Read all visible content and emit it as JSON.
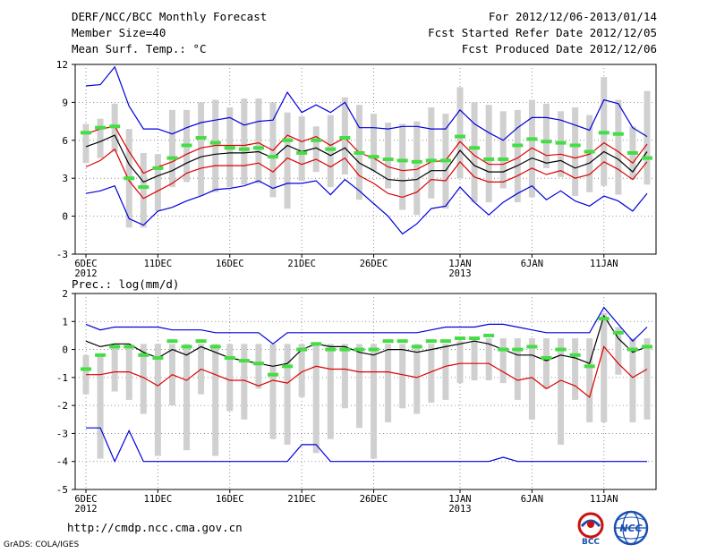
{
  "header": {
    "title": "DERF/NCC/BCC Monthly Forecast",
    "member_size": "Member Size=40",
    "variable": "Mean Surf. Temp.: °C",
    "period": "For 2012/12/06-2013/01/14",
    "fcst_started": "Fcst Started Refer Date 2012/12/05",
    "fcst_produced": "Fcst Produced Date 2012/12/06"
  },
  "footer": {
    "url": "http://cmdp.ncc.cma.gov.cn",
    "credit": "GrADS: COLA/IGES",
    "logos": [
      "BCC",
      "NCC"
    ]
  },
  "colors": {
    "max_min": "#0000dd",
    "std": "#dd0000",
    "mean": "#000000",
    "median": "#44dd44",
    "range_bar": "#d0d0d0"
  },
  "chart_data": [
    {
      "type": "line",
      "title": "Mean Surf. Temp.: °C",
      "x_dates": [
        "6DEC",
        "7DEC",
        "8DEC",
        "9DEC",
        "10DEC",
        "11DEC",
        "12DEC",
        "13DEC",
        "14DEC",
        "15DEC",
        "16DEC",
        "17DEC",
        "18DEC",
        "19DEC",
        "20DEC",
        "21DEC",
        "22DEC",
        "23DEC",
        "24DEC",
        "25DEC",
        "26DEC",
        "27DEC",
        "28DEC",
        "29DEC",
        "30DEC",
        "31DEC",
        "1JAN",
        "2JAN",
        "3JAN",
        "4JAN",
        "5JAN",
        "6JAN",
        "7JAN",
        "8JAN",
        "9JAN",
        "10JAN",
        "11JAN",
        "12JAN",
        "13JAN",
        "14JAN"
      ],
      "x_ticks": [
        {
          "day": 0,
          "label": "6DEC",
          "sub": "2012"
        },
        {
          "day": 5,
          "label": "11DEC",
          "sub": ""
        },
        {
          "day": 10,
          "label": "16DEC",
          "sub": ""
        },
        {
          "day": 15,
          "label": "21DEC",
          "sub": ""
        },
        {
          "day": 20,
          "label": "26DEC",
          "sub": ""
        },
        {
          "day": 26,
          "label": "1JAN",
          "sub": "2013"
        },
        {
          "day": 31,
          "label": "6JAN",
          "sub": ""
        },
        {
          "day": 36,
          "label": "11JAN",
          "sub": ""
        }
      ],
      "ylim": [
        -3,
        12
      ],
      "yticks": [
        -3,
        0,
        3,
        6,
        9,
        12
      ],
      "series": [
        {
          "name": "max",
          "values": [
            10.3,
            10.4,
            11.8,
            8.7,
            6.9,
            6.9,
            6.5,
            7.0,
            7.4,
            7.6,
            7.8,
            7.2,
            7.5,
            7.6,
            9.8,
            8.2,
            8.8,
            8.2,
            9.0,
            7.0,
            7.0,
            6.9,
            7.1,
            7.1,
            6.9,
            6.9,
            8.4,
            7.3,
            6.6,
            6.0,
            7.0,
            7.8,
            7.8,
            7.6,
            7.2,
            6.8,
            9.2,
            8.9,
            7.0,
            6.3
          ]
        },
        {
          "name": "min",
          "values": [
            1.8,
            2.0,
            2.4,
            -0.2,
            -0.7,
            0.4,
            0.7,
            1.2,
            1.6,
            2.1,
            2.2,
            2.4,
            2.8,
            2.2,
            2.6,
            2.6,
            2.8,
            1.7,
            2.9,
            2.0,
            1.0,
            0.0,
            -1.4,
            -0.6,
            0.6,
            0.8,
            2.3,
            1.1,
            0.1,
            1.1,
            1.8,
            2.4,
            1.3,
            2.0,
            1.2,
            0.8,
            1.6,
            1.2,
            0.4,
            1.8
          ]
        },
        {
          "name": "mean+std",
          "values": [
            6.5,
            6.9,
            7.1,
            5.1,
            3.4,
            3.9,
            4.3,
            4.9,
            5.4,
            5.6,
            5.6,
            5.6,
            5.8,
            5.2,
            6.4,
            5.9,
            6.3,
            5.6,
            6.2,
            5.0,
            4.6,
            3.9,
            3.6,
            3.7,
            4.3,
            4.4,
            5.9,
            4.8,
            4.1,
            4.1,
            4.6,
            5.4,
            4.8,
            4.9,
            4.6,
            4.9,
            5.8,
            5.1,
            4.2,
            5.7
          ]
        },
        {
          "name": "mean",
          "values": [
            5.5,
            5.9,
            6.4,
            4.1,
            2.7,
            3.2,
            3.6,
            4.2,
            4.7,
            4.9,
            5.0,
            5.0,
            5.1,
            4.6,
            5.6,
            5.1,
            5.4,
            4.8,
            5.4,
            4.2,
            3.6,
            2.9,
            2.8,
            2.9,
            3.6,
            3.6,
            5.2,
            4.0,
            3.5,
            3.5,
            4.0,
            4.6,
            4.2,
            4.4,
            3.8,
            4.2,
            5.1,
            4.5,
            3.5,
            5.1
          ]
        },
        {
          "name": "mean-std",
          "values": [
            3.9,
            4.4,
            5.3,
            2.8,
            1.4,
            2.0,
            2.6,
            3.4,
            3.8,
            4.0,
            4.0,
            4.0,
            4.2,
            3.5,
            4.6,
            4.1,
            4.5,
            3.9,
            4.6,
            3.2,
            2.6,
            1.8,
            1.5,
            1.9,
            2.9,
            2.8,
            4.3,
            3.1,
            2.7,
            2.7,
            3.2,
            3.8,
            3.3,
            3.6,
            3.0,
            3.3,
            4.3,
            3.7,
            2.9,
            4.3
          ]
        },
        {
          "name": "median",
          "values": [
            6.6,
            7.0,
            7.1,
            3.0,
            2.3,
            3.8,
            4.6,
            5.6,
            6.2,
            5.8,
            5.4,
            5.3,
            5.4,
            4.7,
            6.0,
            5.0,
            6.0,
            5.3,
            6.2,
            5.0,
            4.7,
            4.5,
            4.4,
            4.3,
            4.4,
            4.4,
            6.3,
            5.4,
            4.5,
            4.5,
            5.6,
            6.1,
            5.9,
            5.8,
            5.6,
            5.1,
            6.6,
            6.5,
            5.0,
            4.6
          ]
        },
        {
          "name": "range_top",
          "values": [
            7.3,
            7.7,
            8.9,
            6.9,
            5.0,
            4.9,
            8.4,
            8.4,
            9.0,
            9.2,
            8.6,
            9.3,
            9.3,
            9.0,
            8.2,
            7.9,
            7.1,
            8.0,
            9.4,
            8.8,
            8.1,
            7.4,
            7.3,
            7.5,
            8.6,
            8.1,
            10.2,
            9.0,
            8.8,
            8.3,
            8.4,
            9.2,
            8.9,
            8.3,
            8.6,
            8.0,
            11.0,
            9.2,
            7.1,
            9.9
          ]
        },
        {
          "name": "range_bottom",
          "values": [
            4.2,
            4.6,
            5.1,
            -0.9,
            -0.9,
            0.4,
            2.3,
            2.7,
            1.6,
            1.9,
            2.3,
            2.5,
            2.6,
            1.5,
            0.6,
            2.8,
            3.5,
            2.3,
            3.3,
            1.3,
            3.6,
            2.2,
            0.5,
            0.1,
            1.4,
            0.6,
            3.0,
            1.1,
            1.1,
            2.2,
            1.1,
            1.5,
            3.8,
            3.1,
            1.6,
            1.9,
            2.4,
            1.7,
            2.9,
            2.5
          ]
        }
      ]
    },
    {
      "type": "line",
      "title": "Prec.: log(mm/d)",
      "x_dates": [
        "6DEC",
        "7DEC",
        "8DEC",
        "9DEC",
        "10DEC",
        "11DEC",
        "12DEC",
        "13DEC",
        "14DEC",
        "15DEC",
        "16DEC",
        "17DEC",
        "18DEC",
        "19DEC",
        "20DEC",
        "21DEC",
        "22DEC",
        "23DEC",
        "24DEC",
        "25DEC",
        "26DEC",
        "27DEC",
        "28DEC",
        "29DEC",
        "30DEC",
        "31DEC",
        "1JAN",
        "2JAN",
        "3JAN",
        "4JAN",
        "5JAN",
        "6JAN",
        "7JAN",
        "8JAN",
        "9JAN",
        "10JAN",
        "11JAN",
        "12JAN",
        "13JAN",
        "14JAN"
      ],
      "x_ticks": [
        {
          "day": 0,
          "label": "6DEC",
          "sub": "2012"
        },
        {
          "day": 5,
          "label": "11DEC",
          "sub": ""
        },
        {
          "day": 10,
          "label": "16DEC",
          "sub": ""
        },
        {
          "day": 15,
          "label": "21DEC",
          "sub": ""
        },
        {
          "day": 20,
          "label": "26DEC",
          "sub": ""
        },
        {
          "day": 26,
          "label": "1JAN",
          "sub": "2013"
        },
        {
          "day": 31,
          "label": "6JAN",
          "sub": ""
        },
        {
          "day": 36,
          "label": "11JAN",
          "sub": ""
        }
      ],
      "ylim": [
        -5,
        2
      ],
      "yticks": [
        -5,
        -4,
        -3,
        -2,
        -1,
        0,
        1,
        2
      ],
      "series": [
        {
          "name": "max",
          "values": [
            0.9,
            0.7,
            0.8,
            0.8,
            0.8,
            0.8,
            0.7,
            0.7,
            0.7,
            0.6,
            0.6,
            0.6,
            0.6,
            0.2,
            0.6,
            0.6,
            0.6,
            0.6,
            0.6,
            0.6,
            0.6,
            0.6,
            0.6,
            0.6,
            0.7,
            0.8,
            0.8,
            0.8,
            0.9,
            0.9,
            0.8,
            0.7,
            0.6,
            0.6,
            0.6,
            0.6,
            1.5,
            0.9,
            0.3,
            0.8
          ]
        },
        {
          "name": "min",
          "values": [
            -2.8,
            -2.8,
            -4.0,
            -2.9,
            -4.0,
            -4.0,
            -4.0,
            -4.0,
            -4.0,
            -4.0,
            -4.0,
            -4.0,
            -4.0,
            -4.0,
            -4.0,
            -3.4,
            -3.4,
            -4.0,
            -4.0,
            -4.0,
            -4.0,
            -4.0,
            -4.0,
            -4.0,
            -4.0,
            -4.0,
            -4.0,
            -4.0,
            -4.0,
            -3.85,
            -4.0,
            -4.0,
            -4.0,
            -4.0,
            -4.0,
            -4.0,
            -4.0,
            -4.0,
            -4.0,
            -4.0
          ]
        },
        {
          "name": "mean",
          "values": [
            0.3,
            0.1,
            0.2,
            0.2,
            -0.1,
            -0.3,
            0.0,
            -0.2,
            0.1,
            -0.1,
            -0.3,
            -0.4,
            -0.5,
            -0.6,
            -0.5,
            0.0,
            0.2,
            0.1,
            0.1,
            -0.1,
            -0.2,
            0.0,
            0.0,
            -0.1,
            0.0,
            0.1,
            0.2,
            0.3,
            0.2,
            0.0,
            -0.2,
            -0.2,
            -0.4,
            -0.2,
            -0.3,
            -0.5,
            1.2,
            0.4,
            -0.1,
            0.1
          ]
        },
        {
          "name": "mean-std",
          "values": [
            -0.9,
            -0.9,
            -0.8,
            -0.8,
            -1.0,
            -1.3,
            -0.9,
            -1.1,
            -0.7,
            -0.9,
            -1.1,
            -1.1,
            -1.3,
            -1.1,
            -1.2,
            -0.8,
            -0.6,
            -0.7,
            -0.7,
            -0.8,
            -0.8,
            -0.8,
            -0.9,
            -1.0,
            -0.8,
            -0.6,
            -0.5,
            -0.5,
            -0.5,
            -0.8,
            -1.1,
            -1.0,
            -1.4,
            -1.1,
            -1.3,
            -1.7,
            0.1,
            -0.5,
            -1.0,
            -0.7
          ]
        },
        {
          "name": "median",
          "values": [
            -0.7,
            -0.2,
            0.1,
            0.1,
            -0.2,
            -0.3,
            0.3,
            0.1,
            0.3,
            0.1,
            -0.3,
            -0.4,
            -0.5,
            -0.9,
            -0.6,
            0.0,
            0.2,
            0.0,
            0.0,
            0.0,
            0.0,
            0.3,
            0.3,
            0.1,
            0.3,
            0.3,
            0.4,
            0.4,
            0.5,
            0.0,
            0.0,
            0.1,
            -0.3,
            0.0,
            -0.2,
            -0.6,
            1.1,
            0.6,
            0.0,
            0.1
          ]
        },
        {
          "name": "range_top",
          "values": [
            -0.2,
            -0.2,
            0.2,
            0.2,
            0.2,
            0.2,
            0.2,
            0.2,
            0.2,
            0.2,
            0.2,
            0.2,
            0.2,
            0.2,
            0.2,
            0.2,
            0.2,
            0.2,
            0.2,
            0.2,
            0.2,
            0.2,
            0.2,
            0.2,
            0.2,
            0.2,
            0.3,
            0.4,
            0.4,
            0.4,
            0.4,
            0.4,
            0.4,
            0.4,
            0.4,
            0.4,
            1.3,
            0.8,
            0.4,
            0.4
          ]
        },
        {
          "name": "range_bottom",
          "values": [
            -1.6,
            -3.9,
            -1.5,
            -1.8,
            -2.3,
            -3.8,
            -2.0,
            -3.6,
            -1.6,
            -3.8,
            -2.2,
            -2.5,
            -1.4,
            -3.2,
            -3.4,
            -1.7,
            -3.7,
            -3.2,
            -2.1,
            -2.8,
            -3.9,
            -2.6,
            -2.1,
            -2.3,
            -1.9,
            -1.8,
            -1.2,
            -1.1,
            -1.1,
            -1.2,
            -1.8,
            -2.5,
            -1.4,
            -3.4,
            -1.8,
            -2.6,
            -2.6,
            -0.9,
            -2.6,
            -2.5
          ]
        }
      ]
    }
  ]
}
